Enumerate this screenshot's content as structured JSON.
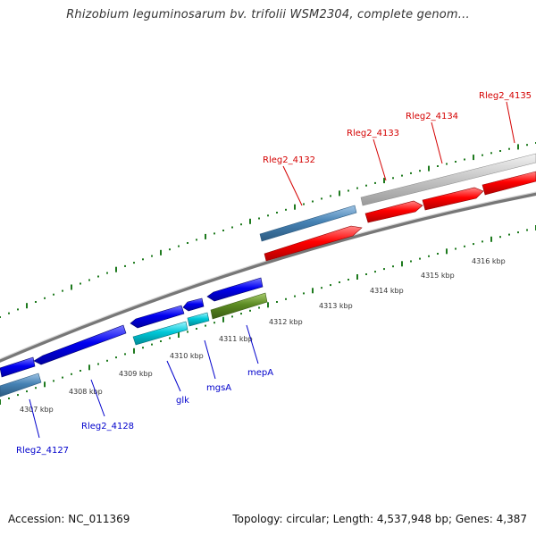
{
  "title": "Rhizobium leguminosarum bv. trifolii WSM2304, complete genom...",
  "footer": {
    "accession": "Accession: NC_011369",
    "summary": "Topology: circular; Length: 4,537,948 bp; Genes: 4,387"
  },
  "colors": {
    "forward_strand": "#ff0000",
    "reverse_strand": "#0000ff",
    "steelblue_gene": "#4682b4",
    "gray_gene": "#bfbfbf",
    "cyan_gene": "#00c8d8",
    "olive_gene": "#5b8a22",
    "tick": "#1e7a1e",
    "backbone": "#888888",
    "label_forward": "#d40000",
    "label_reverse": "#0000cc"
  },
  "kbp_ticks": [
    "4307 kbp",
    "4308 kbp",
    "4309 kbp",
    "4310 kbp",
    "4311 kbp",
    "4312 kbp",
    "4313 kbp",
    "4314 kbp",
    "4315 kbp",
    "4316 kbp"
  ],
  "gene_labels": {
    "forward": [
      "Rleg2_4132",
      "Rleg2_4133",
      "Rleg2_4134",
      "Rleg2_4135"
    ],
    "reverse": [
      "Rleg2_4127",
      "Rleg2_4128",
      "glk",
      "mgsA",
      "mepA"
    ]
  }
}
